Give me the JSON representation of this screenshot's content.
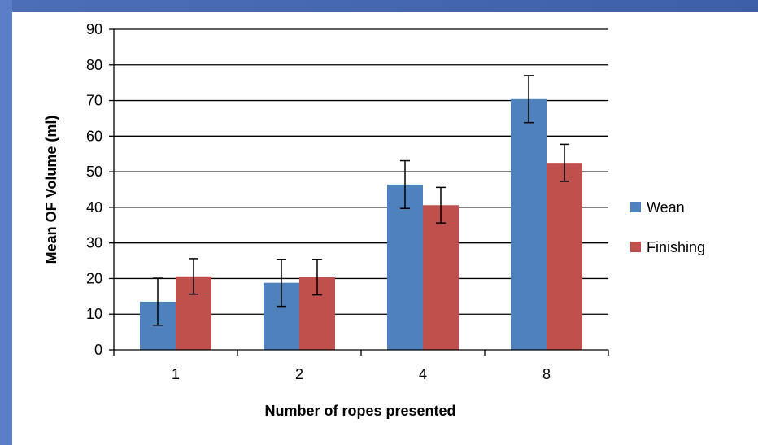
{
  "chart_data": {
    "type": "bar",
    "categories": [
      "1",
      "2",
      "4",
      "8"
    ],
    "series": [
      {
        "name": "Wean",
        "color": "#4f81bd",
        "values": [
          13.5,
          18.8,
          46.4,
          70.4
        ],
        "errors": [
          6.6,
          6.6,
          6.7,
          6.6
        ]
      },
      {
        "name": "Finishing",
        "color": "#c0504d",
        "values": [
          20.6,
          20.4,
          40.6,
          52.5
        ],
        "errors": [
          5.0,
          5.0,
          5.0,
          5.2
        ]
      }
    ],
    "xlabel": "Number of ropes presented",
    "ylabel": "Mean OF Volume (ml)",
    "ylim": [
      0,
      90
    ],
    "yticks": [
      0,
      10,
      20,
      30,
      40,
      50,
      60,
      70,
      80,
      90
    ],
    "grid": true,
    "legend": "right"
  }
}
